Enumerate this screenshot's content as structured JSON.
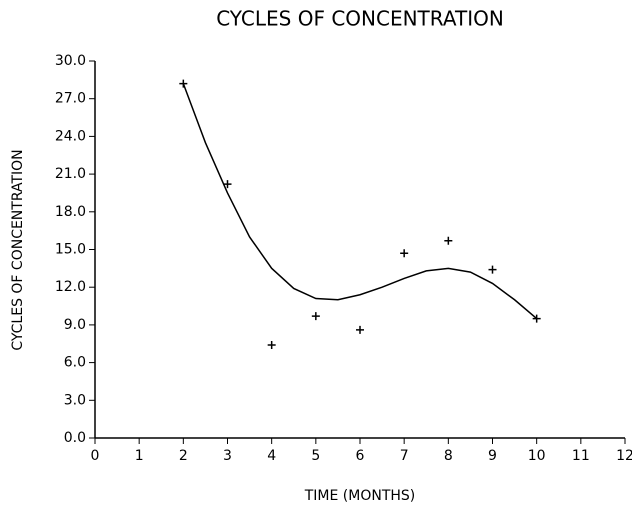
{
  "chart_data": {
    "type": "scatter",
    "title": "CYCLES OF CONCENTRATION",
    "x_label": "TIME (MONTHS)",
    "y_label": "CYCLES OF CONCENTRATION",
    "color": "#000000",
    "x": [
      2,
      3,
      4,
      5,
      6,
      7,
      8,
      9,
      10
    ],
    "values": [
      28.2,
      20.2,
      7.4,
      9.7,
      8.6,
      14.7,
      15.7,
      13.4,
      9.5
    ],
    "curve": {
      "x": [
        2,
        2.5,
        3,
        3.5,
        4,
        4.5,
        5,
        5.5,
        6,
        6.5,
        7,
        7.5,
        8,
        8.5,
        9,
        9.5,
        10
      ],
      "values": [
        28.2,
        23.5,
        19.5,
        16.0,
        13.5,
        11.9,
        11.1,
        11.0,
        11.4,
        12.0,
        12.7,
        13.3,
        13.5,
        13.2,
        12.3,
        11.0,
        9.5
      ]
    },
    "xlim": [
      0,
      12
    ],
    "xticks": [
      0,
      1,
      2,
      3,
      4,
      5,
      6,
      7,
      8,
      9,
      10,
      11,
      12
    ],
    "ylim": [
      0,
      30
    ],
    "yticks": [
      {
        "value": 0,
        "label": "0.0"
      },
      {
        "value": 3,
        "label": "3.0"
      },
      {
        "value": 6,
        "label": "6.0"
      },
      {
        "value": 9,
        "label": "9.0"
      },
      {
        "value": 12,
        "label": "12.0"
      },
      {
        "value": 15,
        "label": "15.0"
      },
      {
        "value": 18,
        "label": "18.0"
      },
      {
        "value": 21,
        "label": "21.0"
      },
      {
        "value": 24,
        "label": "24.0"
      },
      {
        "value": 27,
        "label": "27.0"
      },
      {
        "value": 30,
        "label": "30.0"
      }
    ],
    "grid": false
  }
}
